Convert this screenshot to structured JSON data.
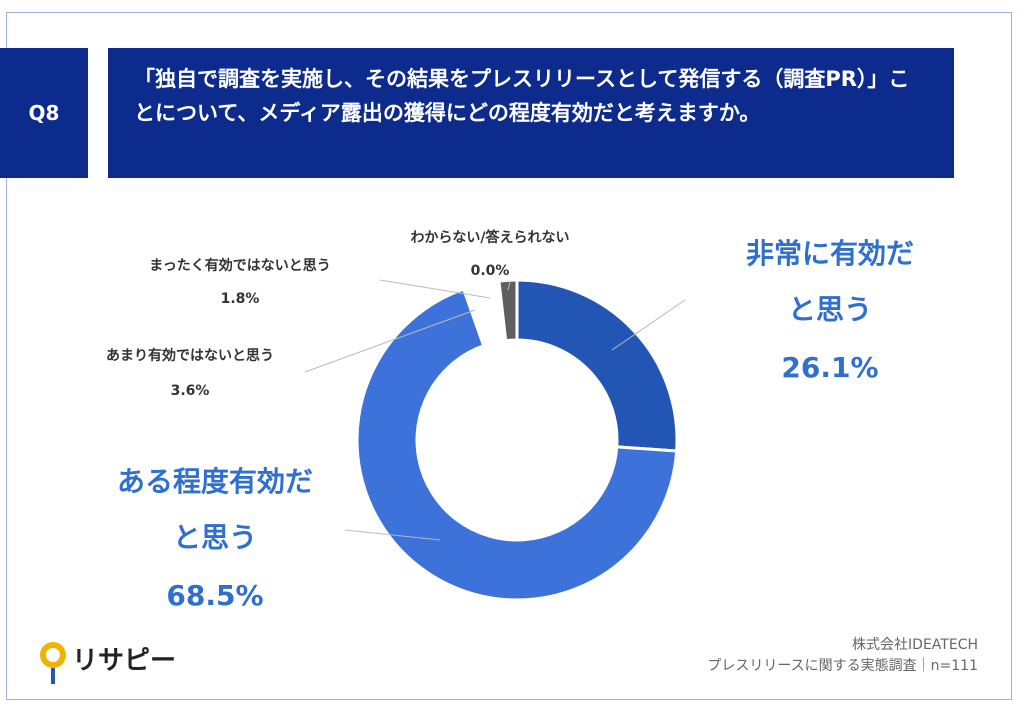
{
  "chart_data": {
    "type": "donut",
    "question_number": "Q8",
    "title": "「独自で調査を実施し、その結果をプレスリリースとして発信する（調査PR）」ことについて、メディア露出の獲得にどの程度有効だと考えますか。",
    "categories": [
      "非常に有効だと思う",
      "ある程度有効だと思う",
      "あまり有効ではないと思う",
      "まったく有効ではないと思う",
      "わからない/答えられない"
    ],
    "values": [
      26.1,
      68.5,
      3.6,
      1.8,
      0.0
    ],
    "value_labels": [
      "26.1%",
      "68.5%",
      "3.6%",
      "1.8%",
      "0.0%"
    ],
    "colors": [
      "#2356b4",
      "#3c72d9",
      "#ffffff",
      "#5f5f5f",
      "#a5a5a5"
    ],
    "source": [
      "株式会社IDEATECH",
      "プレスリリースに関する実態調査｜n=111"
    ],
    "logo": "リサピー"
  }
}
